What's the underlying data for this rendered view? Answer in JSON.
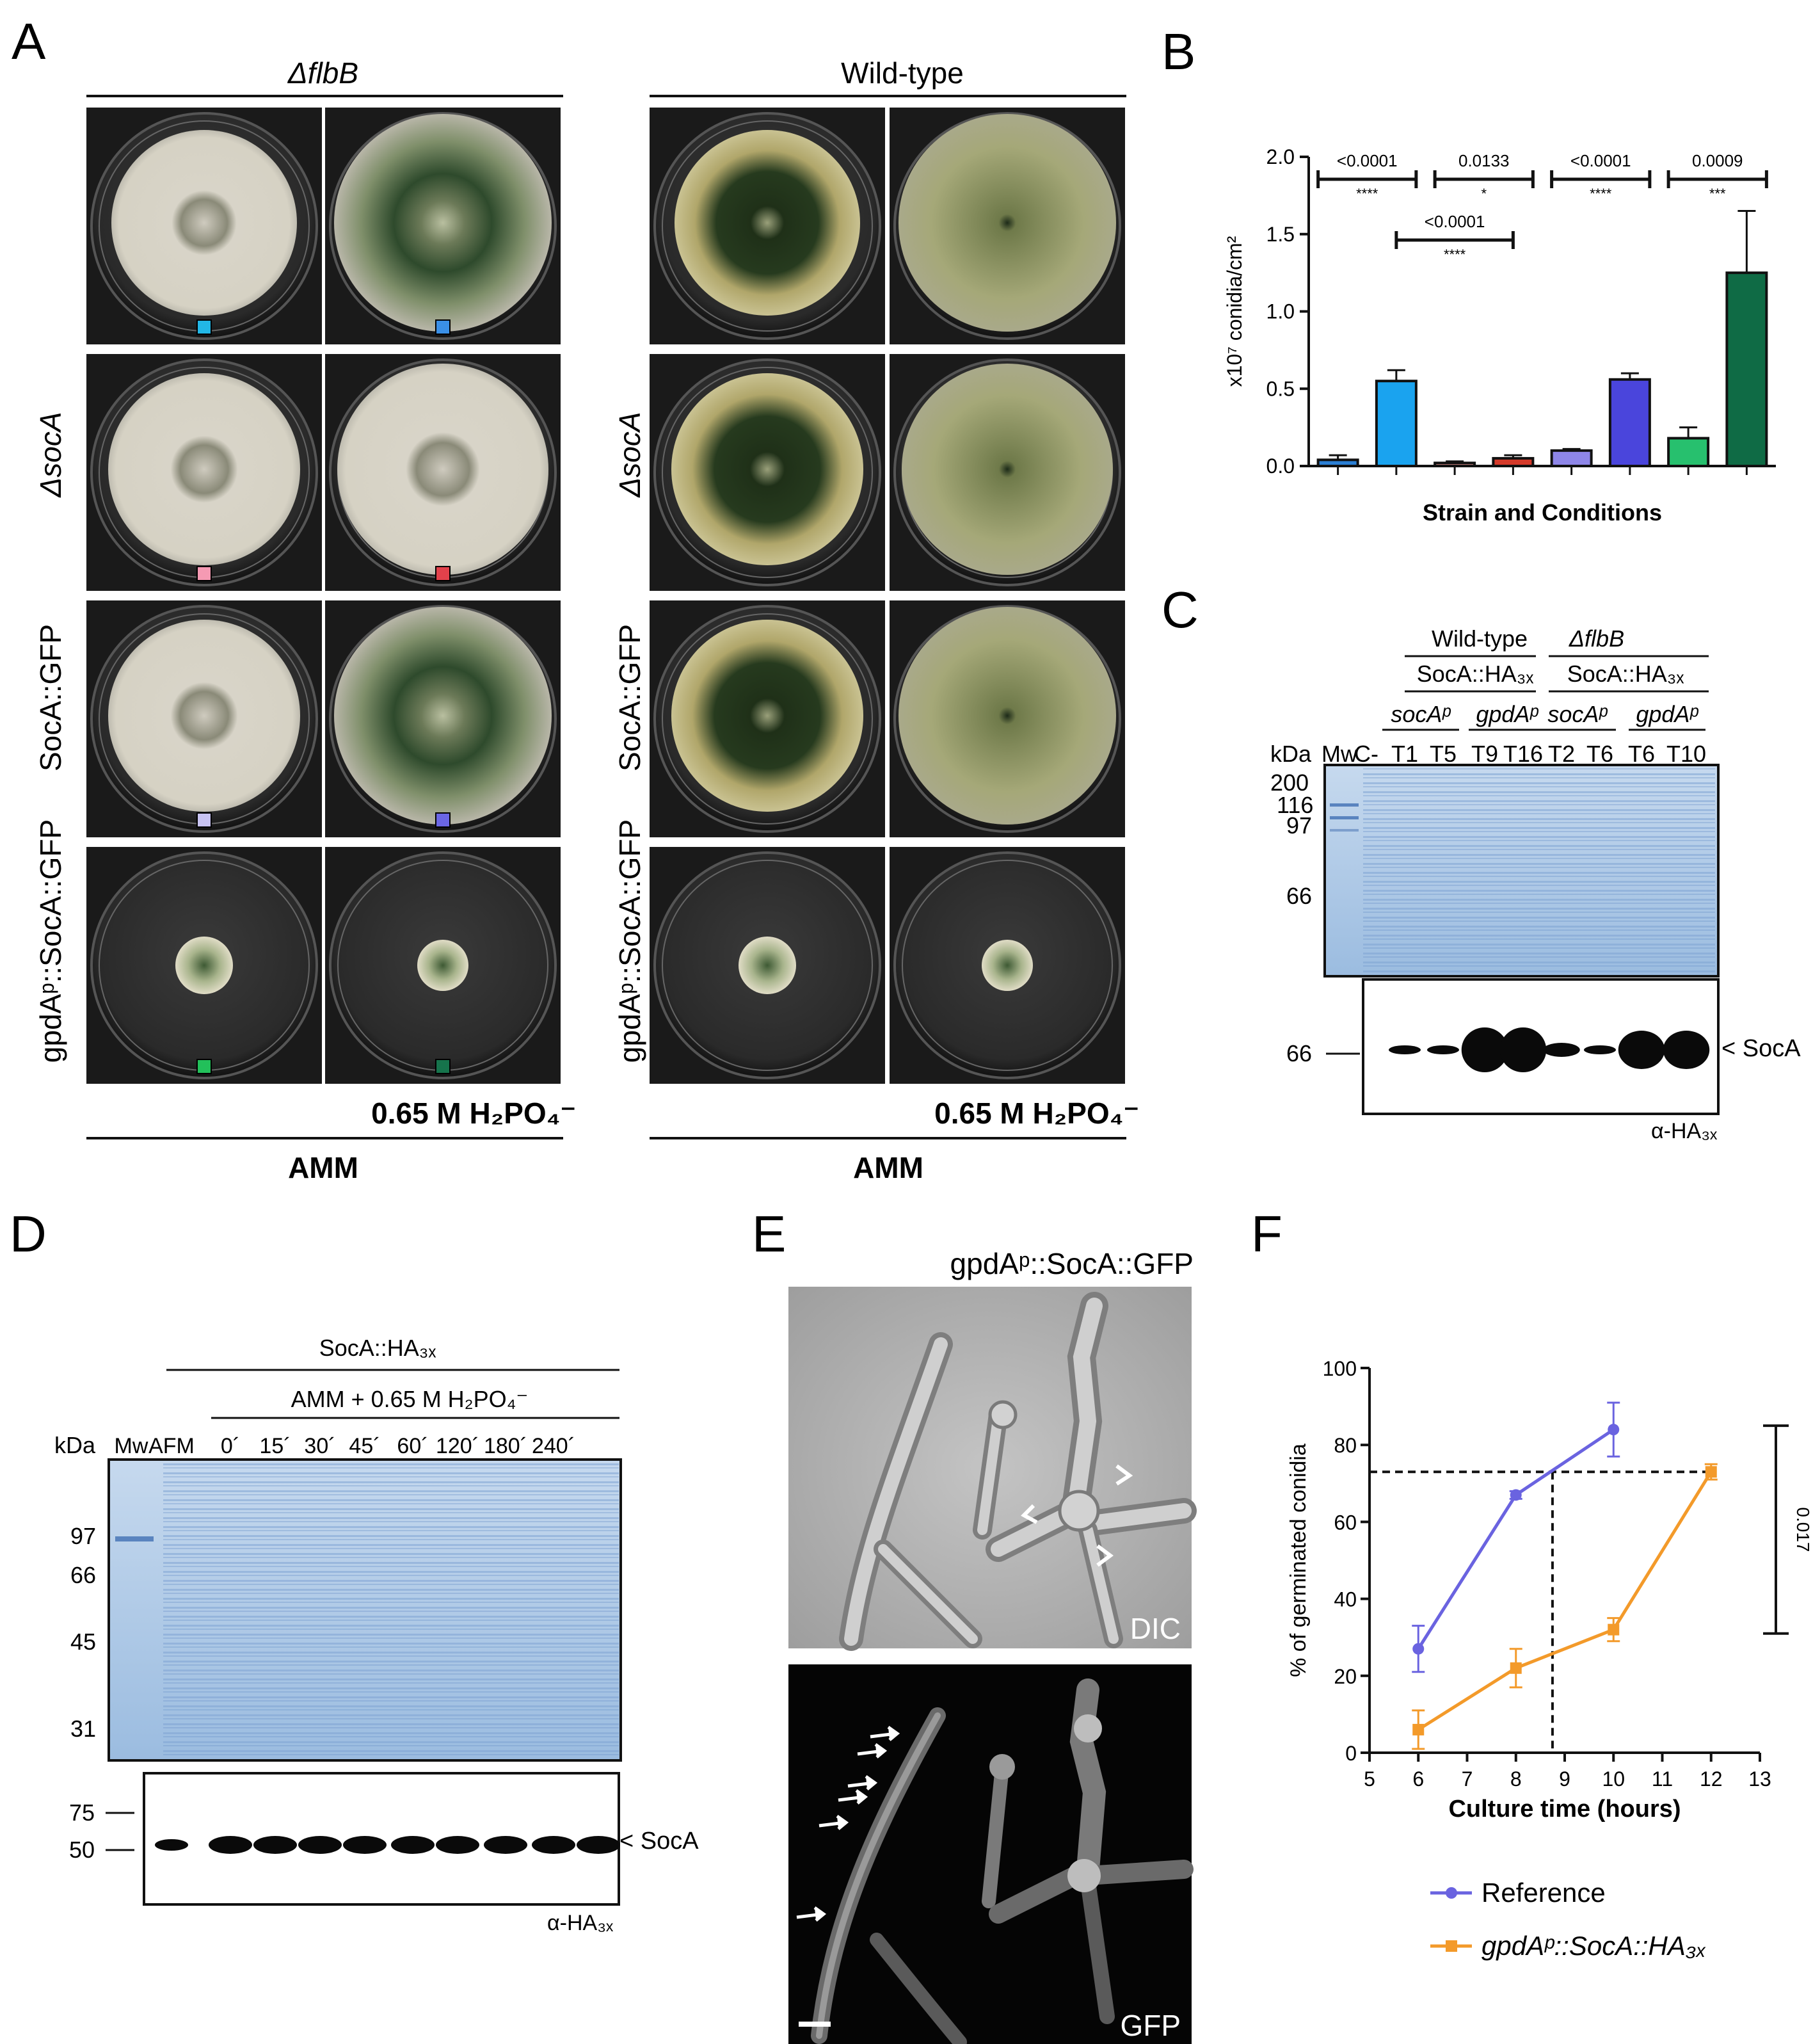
{
  "panels": {
    "a": {
      "letter": "A",
      "left_group_title": "ΔflbB",
      "right_group_title": "Wild-type",
      "strains": [
        "",
        "ΔsocA",
        "SocA::GFP",
        "gpdAᵖ::SocA::GFP"
      ],
      "condition_label": "0.65 M H₂PO₄⁻",
      "medium_label": "AMM",
      "swatch_colors": [
        [
          "#22b7e6",
          "#3a8fe6"
        ],
        [
          "#f59ab3",
          "#e2414b"
        ],
        [
          "#c8c3f2",
          "#6a66e4"
        ],
        [
          "#22c05a",
          "#16744c"
        ]
      ]
    },
    "b": {
      "letter": "B"
    },
    "c": {
      "letter": "C",
      "group_wt": "Wild-type",
      "group_flbb": "ΔflbB",
      "construct": "SocA::HA₃ₓ",
      "promoters": [
        "socAᵖ",
        "gpdAᵖ",
        "socAᵖ",
        "gpdAᵖ"
      ],
      "kda_label": "kDa",
      "lanes": [
        "Mw",
        "C-",
        "T1",
        "T5",
        "T9",
        "T16",
        "T2",
        "T6",
        "T6",
        "T10"
      ],
      "markers": [
        "200",
        "116",
        "97",
        "66"
      ],
      "blot_marker": "66",
      "band_label": "SocA",
      "antibody": "α-HA₃ₓ"
    },
    "d": {
      "letter": "D",
      "construct": "SocA::HA₃ₓ",
      "treatment": "AMM + 0.65 M H₂PO₄⁻",
      "kda_label": "kDa",
      "lanes": [
        "Mw",
        "AFM",
        "0´",
        "15´",
        "30´",
        "45´",
        "60´",
        "120´",
        "180´",
        "240´"
      ],
      "markers": [
        "97",
        "66",
        "45",
        "31"
      ],
      "blot_markers": [
        "75",
        "50"
      ],
      "band_label": "SocA",
      "antibody": "α-HA₃ₓ"
    },
    "e": {
      "letter": "E",
      "title": "gpdAᵖ::SocA::GFP",
      "top_label": "DIC",
      "bottom_label": "GFP"
    },
    "f": {
      "letter": "F"
    }
  },
  "chart_data": [
    {
      "type": "bar",
      "panel": "B",
      "ylabel": "x10⁷ conidia/cm²",
      "xlabel": "Strain and Conditions",
      "ylim": [
        0,
        2.0
      ],
      "yticks": [
        "0.0",
        "0.5",
        "1.0",
        "1.5",
        "2.0"
      ],
      "values": [
        0.04,
        0.55,
        0.02,
        0.05,
        0.1,
        0.56,
        0.18,
        1.25
      ],
      "errors": [
        0.03,
        0.07,
        0.01,
        0.02,
        0.01,
        0.04,
        0.07,
        0.4
      ],
      "colors": [
        "#2b7fd4",
        "#1aa3ef",
        "#d98a86",
        "#d43a2a",
        "#8e86e8",
        "#4a45dc",
        "#27c06e",
        "#0f6b45"
      ],
      "comparisons": [
        {
          "from": 0,
          "to": 1,
          "p": "<0.0001",
          "stars": "****"
        },
        {
          "from": 2,
          "to": 3,
          "p": "0.0133",
          "stars": "*"
        },
        {
          "from": 1,
          "to": 3,
          "p": "<0.0001",
          "stars": "****"
        },
        {
          "from": 4,
          "to": 5,
          "p": "<0.0001",
          "stars": "****"
        },
        {
          "from": 6,
          "to": 7,
          "p": "0.0009",
          "stars": "***"
        }
      ]
    },
    {
      "type": "line",
      "panel": "F",
      "xlabel": "Culture time (hours)",
      "ylabel": "% of germinated conidia",
      "xlim": [
        5,
        13
      ],
      "ylim": [
        0,
        100
      ],
      "xticks": [
        "5",
        "6",
        "7",
        "8",
        "9",
        "10",
        "11",
        "12",
        "13"
      ],
      "yticks": [
        "0",
        "20",
        "40",
        "60",
        "80",
        "100"
      ],
      "series": [
        {
          "name": "Reference",
          "color": "#6a63e0",
          "x": [
            6,
            8,
            10
          ],
          "y": [
            27,
            67,
            84
          ],
          "err": [
            6,
            1,
            7
          ]
        },
        {
          "name": "gpdAᵖ::SocA::HA₃ₓ",
          "color": "#f39a2a",
          "x": [
            6,
            8,
            10,
            12
          ],
          "y": [
            6,
            22,
            32,
            73
          ],
          "err": [
            5,
            5,
            3,
            2
          ]
        }
      ],
      "reference_line": {
        "x": 8.75,
        "y": 73
      },
      "bracket_label": "0.017"
    }
  ]
}
